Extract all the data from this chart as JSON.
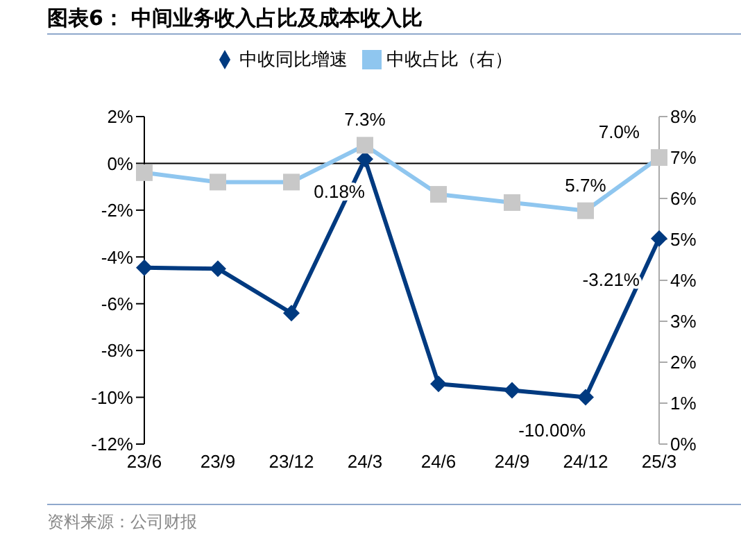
{
  "chart_data": {
    "type": "line",
    "title": "图表6：  中间业务收入占比及成本收入比",
    "categories": [
      "23/6",
      "23/9",
      "23/12",
      "24/3",
      "24/6",
      "24/9",
      "24/12",
      "25/3"
    ],
    "series": [
      {
        "name": "中收同比增速",
        "color": "#003a80",
        "marker": "diamond",
        "values": [
          -4.46,
          -4.5,
          -6.4,
          0.18,
          -9.43,
          -9.7,
          -10.0,
          -3.21
        ],
        "value_labels": [
          null,
          null,
          null,
          "0.18%",
          null,
          null,
          "-10.00%",
          "-3.21%"
        ]
      },
      {
        "name": "中收占比（右）",
        "color": "#8fc6ef",
        "marker": "square",
        "axis": "y2",
        "values": [
          6.63,
          6.4,
          6.4,
          7.3,
          6.1,
          5.9,
          5.7,
          7.0
        ],
        "value_labels": [
          null,
          null,
          null,
          "7.3%",
          null,
          null,
          "5.7%",
          "7.0%"
        ]
      }
    ],
    "ylim": [
      -12,
      2
    ],
    "yticks": [
      {
        "value": -12,
        "label": "-12%"
      },
      {
        "value": -10,
        "label": "-10%"
      },
      {
        "value": -8,
        "label": "-8%"
      },
      {
        "value": -6,
        "label": "-6%"
      },
      {
        "value": -4,
        "label": "-4%"
      },
      {
        "value": -2,
        "label": "-2%"
      },
      {
        "value": 0,
        "label": "0%"
      },
      {
        "value": 2,
        "label": "2%"
      }
    ],
    "y2lim": [
      0,
      8
    ],
    "y2ticks": [
      {
        "value": 0,
        "label": "0%"
      },
      {
        "value": 1,
        "label": "1%"
      },
      {
        "value": 2,
        "label": "2%"
      },
      {
        "value": 3,
        "label": "3%"
      },
      {
        "value": 4,
        "label": "4%"
      },
      {
        "value": 5,
        "label": "5%"
      },
      {
        "value": 6,
        "label": "6%"
      },
      {
        "value": 7,
        "label": "7%"
      },
      {
        "value": 8,
        "label": "8%"
      }
    ],
    "ref_lines": [
      {
        "axis": "y",
        "value": 0,
        "color": "#000000"
      }
    ],
    "legend": "top",
    "annotations": [
      "资料来源：公司财报"
    ]
  }
}
